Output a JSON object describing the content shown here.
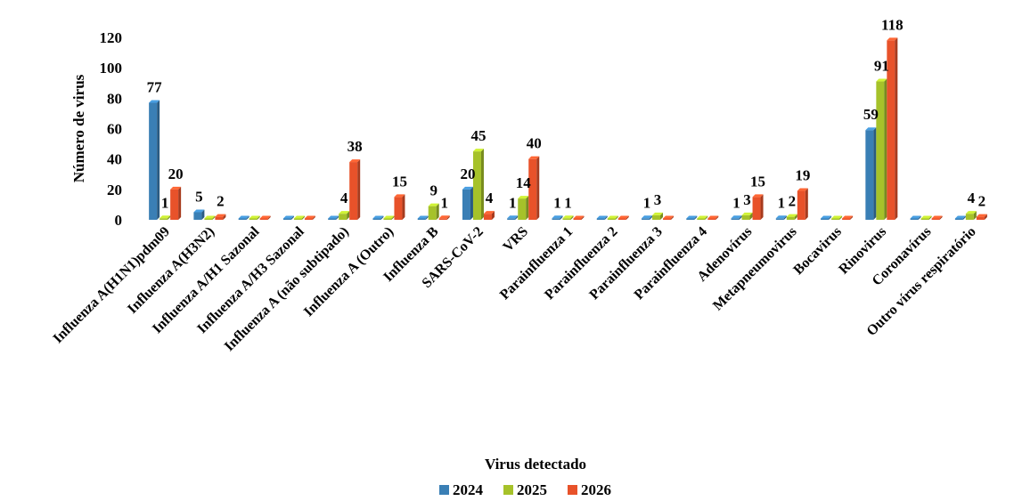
{
  "chart_data": {
    "type": "bar",
    "xlabel": "Virus detectado",
    "ylabel": "Número de virus",
    "ylim": [
      0,
      120
    ],
    "yticks": [
      0,
      20,
      40,
      60,
      80,
      100,
      120
    ],
    "grid": false,
    "legend_position": "bottom",
    "categories": [
      "Influenza A(H1N1)pdm09",
      "Influenza A(H3N2)",
      "Influenza A/H1 Sazonal",
      "Influenza A/H3 Sazonal",
      "Influenza A (não subtipado)",
      "Influenza A (Outro)",
      "Influenza B",
      "SARS-CoV-2",
      "VRS",
      "Parainfluenza 1",
      "Parainfluenza 2",
      "Parainfluenza 3",
      "Parainfluenza 4",
      "Adenovírus",
      "Metapneumovirus",
      "Bocavirus",
      "Rinovirus",
      "Coronavírus",
      "Outro vírus respiratório"
    ],
    "series": [
      {
        "name": "2024",
        "color": "#3a7fb5",
        "values": [
          77,
          5,
          0,
          0,
          0,
          0,
          0,
          20,
          1,
          1,
          0,
          1,
          0,
          1,
          1,
          0,
          59,
          0,
          0
        ]
      },
      {
        "name": "2025",
        "color": "#a6c22a",
        "values": [
          1,
          0,
          0,
          0,
          4,
          0,
          9,
          45,
          14,
          1,
          0,
          3,
          0,
          3,
          2,
          0,
          91,
          0,
          4
        ]
      },
      {
        "name": "2026",
        "color": "#e8522a",
        "values": [
          20,
          2,
          0,
          0,
          38,
          15,
          1,
          4,
          40,
          0,
          0,
          0,
          0,
          15,
          19,
          0,
          118,
          0,
          2
        ]
      }
    ],
    "data_labels": [
      {
        "category": 0,
        "series": 0,
        "text": "77"
      },
      {
        "category": 0,
        "series": 1,
        "text": "1"
      },
      {
        "category": 0,
        "series": 2,
        "text": "20"
      },
      {
        "category": 1,
        "series": 0,
        "text": "5"
      },
      {
        "category": 1,
        "series": 2,
        "text": "2"
      },
      {
        "category": 4,
        "series": 1,
        "text": "4"
      },
      {
        "category": 4,
        "series": 2,
        "text": "38"
      },
      {
        "category": 5,
        "series": 2,
        "text": "15"
      },
      {
        "category": 6,
        "series": 1,
        "text": "9"
      },
      {
        "category": 6,
        "series": 2,
        "text": "1"
      },
      {
        "category": 7,
        "series": 0,
        "text": "20"
      },
      {
        "category": 7,
        "series": 1,
        "text": "45"
      },
      {
        "category": 7,
        "series": 2,
        "text": "4"
      },
      {
        "category": 8,
        "series": 0,
        "text": "1"
      },
      {
        "category": 8,
        "series": 1,
        "text": "14"
      },
      {
        "category": 8,
        "series": 2,
        "text": "40"
      },
      {
        "category": 9,
        "series": 0,
        "text": "1"
      },
      {
        "category": 9,
        "series": 1,
        "text": "1"
      },
      {
        "category": 11,
        "series": 0,
        "text": "1"
      },
      {
        "category": 11,
        "series": 1,
        "text": "3"
      },
      {
        "category": 13,
        "series": 0,
        "text": "1"
      },
      {
        "category": 13,
        "series": 1,
        "text": "3"
      },
      {
        "category": 13,
        "series": 2,
        "text": "15"
      },
      {
        "category": 14,
        "series": 0,
        "text": "1"
      },
      {
        "category": 14,
        "series": 1,
        "text": "2"
      },
      {
        "category": 14,
        "series": 2,
        "text": "19"
      },
      {
        "category": 16,
        "series": 0,
        "text": "59"
      },
      {
        "category": 16,
        "series": 1,
        "text": "91"
      },
      {
        "category": 16,
        "series": 2,
        "text": "118"
      },
      {
        "category": 18,
        "series": 1,
        "text": "4"
      },
      {
        "category": 18,
        "series": 2,
        "text": "2"
      }
    ]
  }
}
